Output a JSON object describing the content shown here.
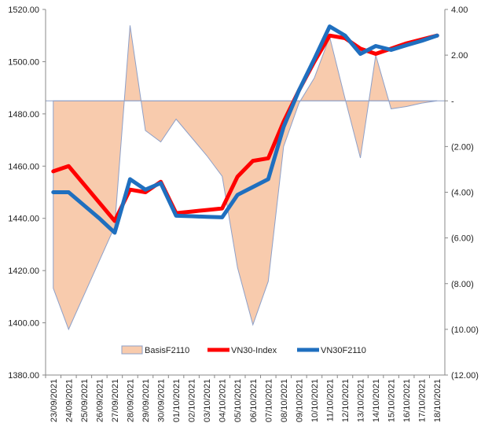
{
  "chart_data": {
    "type": "combo",
    "categories": [
      "23/09/2021",
      "24/09/2021",
      "25/09/2021",
      "26/09/2021",
      "27/09/2021",
      "28/09/2021",
      "29/09/2021",
      "30/09/2021",
      "01/10/2021",
      "02/10/2021",
      "03/10/2021",
      "04/10/2021",
      "05/10/2021",
      "06/10/2021",
      "07/10/2021",
      "08/10/2021",
      "09/10/2021",
      "10/10/2021",
      "11/10/2021",
      "12/10/2021",
      "13/10/2021",
      "14/10/2021",
      "15/10/2021",
      "16/10/2021",
      "17/10/2021",
      "18/10/2021"
    ],
    "y_left": {
      "min": 1380,
      "max": 1520,
      "step": 20,
      "tick_labels": [
        "1380.00",
        "1400.00",
        "1420.00",
        "1440.00",
        "1460.00",
        "1480.00",
        "1500.00",
        "1520.00"
      ]
    },
    "y_right": {
      "min": -12,
      "max": 4,
      "step": 2,
      "tick_labels": [
        "(12.00)",
        "(10.00)",
        "(8.00)",
        "(6.00)",
        "(4.00)",
        "(2.00)",
        "-",
        "2.00",
        "4.00"
      ]
    },
    "series": [
      {
        "name": "BasisF2110",
        "kind": "area",
        "axis": "right",
        "color": "#f8cbad",
        "stroke": "#8ea0c8",
        "values": [
          -8.2,
          -10.0,
          -8.5,
          -7.0,
          -5.5,
          3.3,
          -1.3,
          -1.8,
          -0.8,
          -1.6,
          -2.4,
          -3.3,
          -7.3,
          -9.8,
          -7.9,
          -2.0,
          -0.1,
          1.0,
          2.8,
          0.1,
          -2.5,
          2.0,
          -0.35,
          -0.25,
          -0.1,
          0.0
        ]
      },
      {
        "name": "VN30-Index",
        "kind": "line",
        "axis": "left",
        "color": "#ff0000",
        "values": [
          1458,
          1460,
          1453,
          1446,
          1439,
          1451,
          1450,
          1454,
          1442,
          1442.6,
          1443.2,
          1443.8,
          1456,
          1462,
          1463,
          1477,
          1489,
          1500,
          1510,
          1509,
          1505,
          1503,
          1505,
          1507,
          1508.5,
          1510
        ]
      },
      {
        "name": "VN30F2110",
        "kind": "line",
        "axis": "left",
        "color": "#1f6fbf",
        "values": [
          1450,
          1450,
          1445,
          1440,
          1434.5,
          1455,
          1451,
          1453.5,
          1441,
          1440.8,
          1440.6,
          1440.4,
          1449,
          1452,
          1455,
          1475,
          1489,
          1501,
          1513.5,
          1510,
          1503,
          1506,
          1504.5,
          1506.3,
          1508,
          1510
        ]
      }
    ],
    "legend": {
      "position": "bottom",
      "entries": [
        "BasisF2110",
        "VN30-Index",
        "VN30F2110"
      ]
    },
    "grid": false
  }
}
